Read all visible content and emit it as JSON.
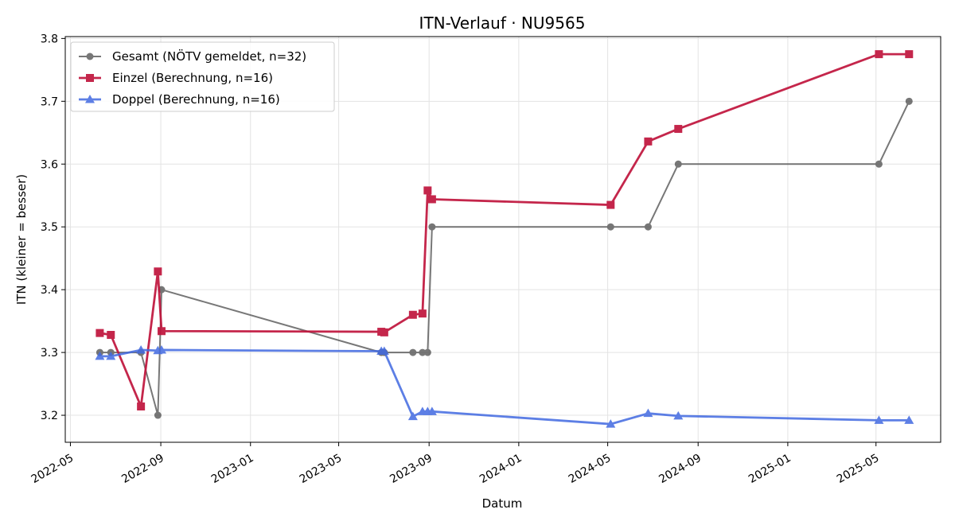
{
  "chart_data": {
    "type": "line",
    "title": "ITN-Verlauf · NU9565",
    "xlabel": "Datum",
    "ylabel": "ITN  (kleiner = besser)",
    "x_type": "date",
    "xlim": [
      "2022-04-24",
      "2025-07-28"
    ],
    "ylim": [
      3.157,
      3.803
    ],
    "x_ticks": [
      "2022-05-01",
      "2022-09-01",
      "2023-01-01",
      "2023-05-01",
      "2023-09-01",
      "2024-01-01",
      "2024-05-01",
      "2024-09-01",
      "2025-01-01",
      "2025-05-01"
    ],
    "x_tick_labels": [
      "2022-05",
      "2022-09",
      "2023-01",
      "2023-05",
      "2023-09",
      "2024-01",
      "2024-05",
      "2024-09",
      "2025-01",
      "2025-05"
    ],
    "y_ticks": [
      3.2,
      3.3,
      3.4,
      3.5,
      3.6,
      3.7,
      3.8
    ],
    "y_tick_labels": [
      "3.2",
      "3.3",
      "3.4",
      "3.5",
      "3.6",
      "3.7",
      "3.8"
    ],
    "grid": true,
    "legend_position": "top-left",
    "series": [
      {
        "name": "Gesamt (NÖTV gemeldet, n=32)",
        "color": "#444444",
        "marker": "circle",
        "points": [
          {
            "x": "2022-06-10",
            "y": 3.3
          },
          {
            "x": "2022-06-25",
            "y": 3.3
          },
          {
            "x": "2022-08-05",
            "y": 3.3
          },
          {
            "x": "2022-08-28",
            "y": 3.2
          },
          {
            "x": "2022-09-02",
            "y": 3.4
          },
          {
            "x": "2023-06-28",
            "y": 3.3
          },
          {
            "x": "2023-07-02",
            "y": 3.3
          },
          {
            "x": "2023-08-10",
            "y": 3.3
          },
          {
            "x": "2023-08-23",
            "y": 3.3
          },
          {
            "x": "2023-08-30",
            "y": 3.3
          },
          {
            "x": "2023-09-05",
            "y": 3.5
          },
          {
            "x": "2024-05-05",
            "y": 3.5
          },
          {
            "x": "2024-06-25",
            "y": 3.5
          },
          {
            "x": "2024-08-05",
            "y": 3.6
          },
          {
            "x": "2025-05-05",
            "y": 3.6
          },
          {
            "x": "2025-06-15",
            "y": 3.7
          }
        ]
      },
      {
        "name": "Einzel (Berechnung, n=16)",
        "color": "#c0143c",
        "marker": "square",
        "points": [
          {
            "x": "2022-06-10",
            "y": 3.331
          },
          {
            "x": "2022-06-25",
            "y": 3.328
          },
          {
            "x": "2022-08-05",
            "y": 3.214
          },
          {
            "x": "2022-08-28",
            "y": 3.429
          },
          {
            "x": "2022-09-02",
            "y": 3.334
          },
          {
            "x": "2023-06-28",
            "y": 3.333
          },
          {
            "x": "2023-07-02",
            "y": 3.332
          },
          {
            "x": "2023-08-10",
            "y": 3.36
          },
          {
            "x": "2023-08-23",
            "y": 3.362
          },
          {
            "x": "2023-08-30",
            "y": 3.558
          },
          {
            "x": "2023-09-05",
            "y": 3.544
          },
          {
            "x": "2024-05-05",
            "y": 3.535
          },
          {
            "x": "2024-06-25",
            "y": 3.636
          },
          {
            "x": "2024-08-05",
            "y": 3.656
          },
          {
            "x": "2025-05-05",
            "y": 3.775
          },
          {
            "x": "2025-06-15",
            "y": 3.775
          }
        ]
      },
      {
        "name": "Doppel (Berechnung, n=16)",
        "color": "#4169e1",
        "marker": "triangle",
        "points": [
          {
            "x": "2022-06-10",
            "y": 3.294
          },
          {
            "x": "2022-06-25",
            "y": 3.294
          },
          {
            "x": "2022-08-05",
            "y": 3.304
          },
          {
            "x": "2022-08-28",
            "y": 3.303
          },
          {
            "x": "2022-09-02",
            "y": 3.304
          },
          {
            "x": "2023-06-28",
            "y": 3.302
          },
          {
            "x": "2023-07-02",
            "y": 3.302
          },
          {
            "x": "2023-08-10",
            "y": 3.198
          },
          {
            "x": "2023-08-23",
            "y": 3.206
          },
          {
            "x": "2023-08-30",
            "y": 3.206
          },
          {
            "x": "2023-09-05",
            "y": 3.206
          },
          {
            "x": "2024-05-05",
            "y": 3.186
          },
          {
            "x": "2024-06-25",
            "y": 3.203
          },
          {
            "x": "2024-08-05",
            "y": 3.199
          },
          {
            "x": "2025-05-05",
            "y": 3.192
          },
          {
            "x": "2025-06-15",
            "y": 3.192
          }
        ]
      }
    ]
  }
}
